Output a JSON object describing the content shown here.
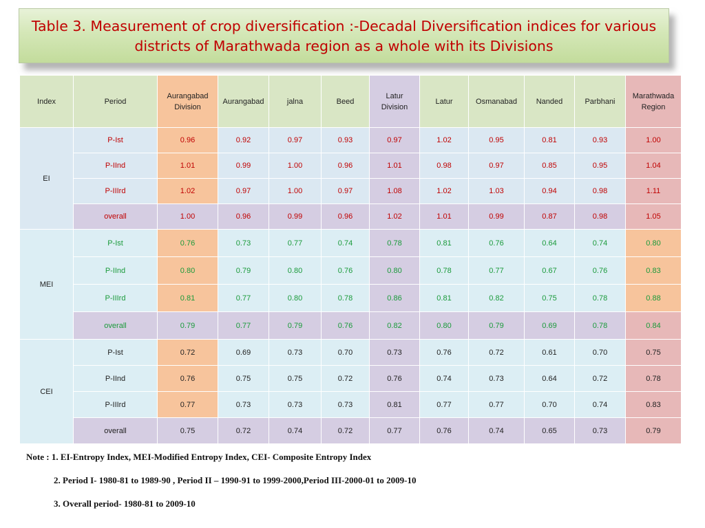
{
  "title": {
    "line1": "Table 3. Measurement of crop diversification :-Decadal Diversification indices for various",
    "line2": "districts of Marathwada region as a whole with its Divisions"
  },
  "table": {
    "headers": {
      "index": "Index",
      "period": "Period",
      "aurangabad_division_l1": "Aurangabad",
      "aurangabad_division_l2": "Division",
      "aurangabad": "Aurangabad",
      "jalna": "jalna",
      "beed": "Beed",
      "latur_division_l1": "Latur",
      "latur_division_l2": "Division",
      "latur": "Latur",
      "osmanabad": "Osmanabad",
      "nanded": "Nanded",
      "parbhani": "Parbhani",
      "marathwada_region_l1": "Marathwada",
      "marathwada_region_l2": "Region"
    },
    "EI": {
      "label": "EI",
      "rows": [
        {
          "period": "P-Ist",
          "values": [
            "0.96",
            "0.92",
            "0.97",
            "0.93",
            "0.97",
            "1.02",
            "0.95",
            "0.81",
            "0.93",
            "1.00"
          ]
        },
        {
          "period": "P-IInd",
          "values": [
            "1.01",
            "0.99",
            "1.00",
            "0.96",
            "1.01",
            "0.98",
            "0.97",
            "0.85",
            "0.95",
            "1.04"
          ]
        },
        {
          "period": "P-IIIrd",
          "values": [
            "1.02",
            "0.97",
            "1.00",
            "0.97",
            "1.08",
            "1.02",
            "1.03",
            "0.94",
            "0.98",
            "1.11"
          ]
        },
        {
          "period": "overall",
          "values": [
            "1.00",
            "0.96",
            "0.99",
            "0.96",
            "1.02",
            "1.01",
            "0.99",
            "0.87",
            "0.98",
            "1.05"
          ]
        }
      ]
    },
    "MEI": {
      "label": "MEI",
      "rows": [
        {
          "period": "P-Ist",
          "values": [
            "0.76",
            "0.73",
            "0.77",
            "0.74",
            "0.78",
            "0.81",
            "0.76",
            "0.64",
            "0.74",
            "0.80"
          ]
        },
        {
          "period": "P-IInd",
          "values": [
            "0.80",
            "0.79",
            "0.80",
            "0.76",
            "0.80",
            "0.78",
            "0.77",
            "0.67",
            "0.76",
            "0.83"
          ]
        },
        {
          "period": "P-IIIrd",
          "values": [
            "0.81",
            "0.77",
            "0.80",
            "0.78",
            "0.86",
            "0.81",
            "0.82",
            "0.75",
            "0.78",
            "0.88"
          ]
        },
        {
          "period": "overall",
          "values": [
            "0.79",
            "0.77",
            "0.79",
            "0.76",
            "0.82",
            "0.80",
            "0.79",
            "0.69",
            "0.78",
            "0.84"
          ]
        }
      ]
    },
    "CEI": {
      "label": "CEI",
      "rows": [
        {
          "period": "P-Ist",
          "values": [
            "0.72",
            "0.69",
            "0.73",
            "0.70",
            "0.73",
            "0.76",
            "0.72",
            "0.61",
            "0.70",
            "0.75"
          ]
        },
        {
          "period": "P-IInd",
          "values": [
            "0.76",
            "0.75",
            "0.75",
            "0.72",
            "0.76",
            "0.74",
            "0.73",
            "0.64",
            "0.72",
            "0.78"
          ]
        },
        {
          "period": "P-IIIrd",
          "values": [
            "0.77",
            "0.73",
            "0.73",
            "0.73",
            "0.81",
            "0.77",
            "0.77",
            "0.70",
            "0.74",
            "0.83"
          ]
        },
        {
          "period": "overall",
          "values": [
            "0.75",
            "0.72",
            "0.74",
            "0.72",
            "0.77",
            "0.76",
            "0.74",
            "0.65",
            "0.73",
            "0.79"
          ]
        }
      ]
    }
  },
  "notes": {
    "n1": "Note : 1. EI-Entropy Index, MEI-Modified Entropy Index, CEI-   Composite Entropy Index",
    "n2": "2. Period I- 1980-81 to 1989-90 , Period II – 1990-91 to 1999-2000,Period III-2000-01 to 2009-10",
    "n3": "3. Overall period- 1980-81 to 2009-10"
  },
  "colors": {
    "title_text": "#c00000",
    "ei_text": "#c00000",
    "mei_text": "#1a9a3a",
    "cei_text": "#222222",
    "header_bg": "#d9e6c5",
    "aurangabad_division_bg": "#f7c49c",
    "latur_division_bg": "#d5cde2",
    "marathwada_bg": "#e7b8b8"
  }
}
